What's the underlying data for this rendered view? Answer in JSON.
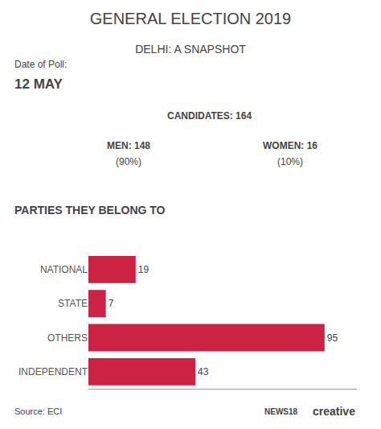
{
  "chart_data": {
    "type": "bar",
    "orientation": "horizontal",
    "title": "GENERAL ELECTION 2019",
    "subtitle": "DELHI: A SNAPSHOT",
    "categories": [
      "NATIONAL",
      "STATE",
      "OTHERS",
      "INDEPENDENT"
    ],
    "values": [
      19,
      7,
      95,
      43
    ],
    "color": "#cc2244",
    "xlim": [
      0,
      108
    ],
    "data_labels": true,
    "tick_labels": "y",
    "grid": false,
    "annotations": [
      "Date of Poll:",
      "12 MAY",
      "CANDIDATES: 164",
      "MEN: 148",
      "(90%)",
      "WOMEN: 16",
      "(10%)",
      "PARTIES THEY BELONG TO",
      "Source: ECI",
      "NEWS18",
      "creative"
    ]
  }
}
